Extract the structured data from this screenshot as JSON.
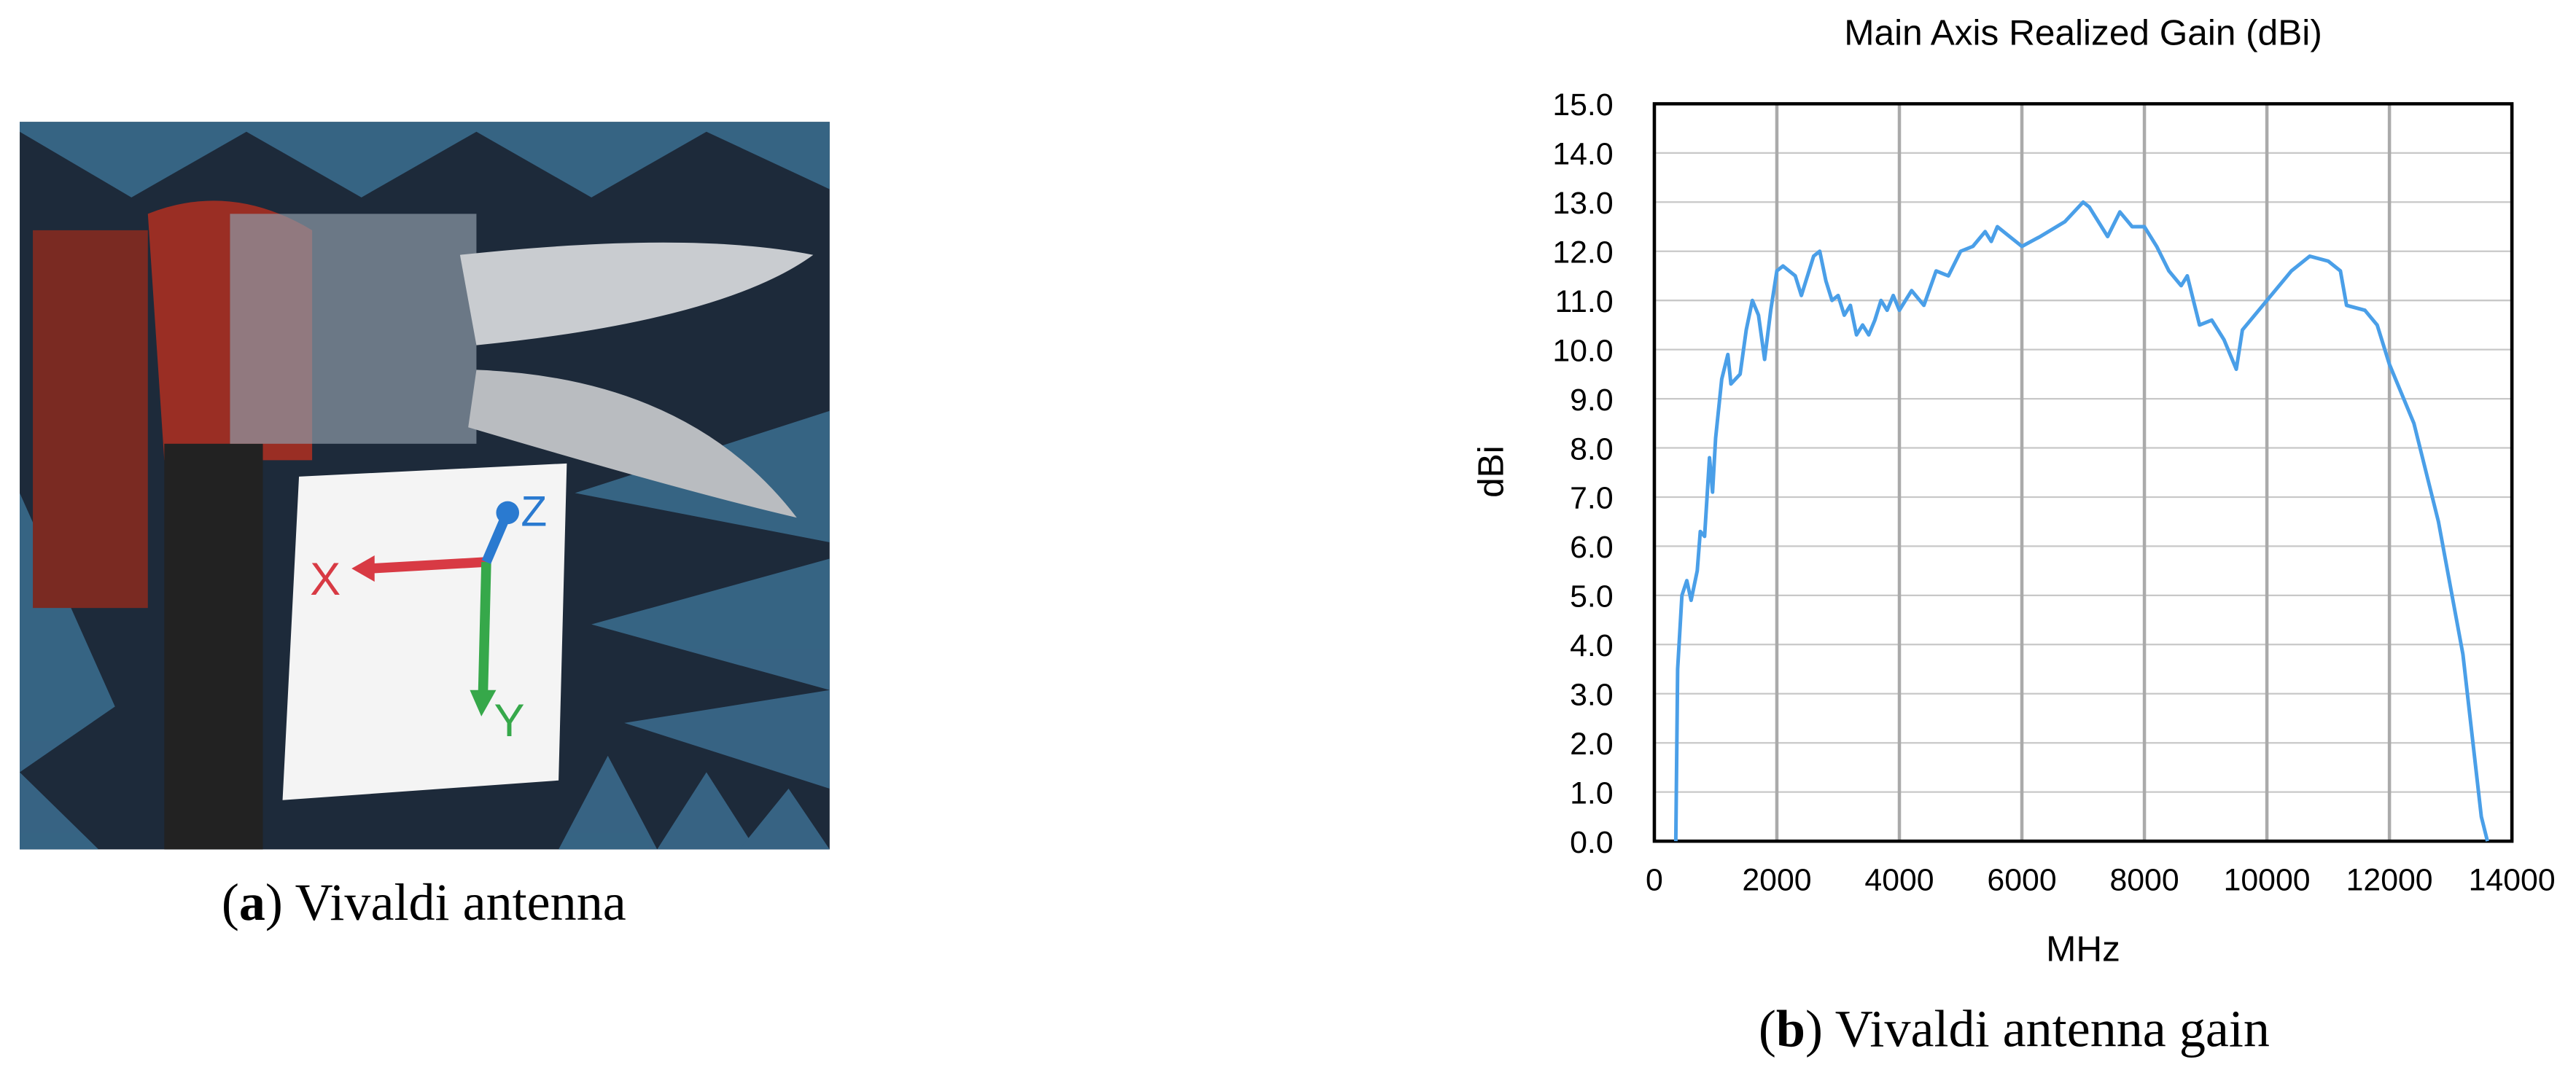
{
  "photo": {
    "labels": [
      "X",
      "Y",
      "Z"
    ],
    "caption": [
      "(",
      "a",
      ") Vivaldi antenna"
    ]
  },
  "chart_caption": [
    "(",
    "b",
    ") Vivaldi antenna gain"
  ],
  "chart_data": {
    "type": "line",
    "title": "Main Axis Realized Gain (dBi)",
    "x_label": "MHz",
    "y_label": "dBi",
    "color": "#4a9fe8",
    "grid": true,
    "xlim": [
      0,
      14000
    ],
    "xticks": [
      0,
      2000,
      4000,
      6000,
      8000,
      10000,
      12000,
      14000
    ],
    "ylim": [
      0,
      15
    ],
    "yticks": [
      {
        "value": 0,
        "label": "0.0"
      },
      {
        "value": 1,
        "label": "1.0"
      },
      {
        "value": 2,
        "label": "2.0"
      },
      {
        "value": 3,
        "label": "3.0"
      },
      {
        "value": 4,
        "label": "4.0"
      },
      {
        "value": 5,
        "label": "5.0"
      },
      {
        "value": 6,
        "label": "6.0"
      },
      {
        "value": 7,
        "label": "7.0"
      },
      {
        "value": 8,
        "label": "8.0"
      },
      {
        "value": 9,
        "label": "9.0"
      },
      {
        "value": 10,
        "label": "10.0"
      },
      {
        "value": 11,
        "label": "11.0"
      },
      {
        "value": 12,
        "label": "12.0"
      },
      {
        "value": 13,
        "label": "13.0"
      },
      {
        "value": 14,
        "label": "14.0"
      },
      {
        "value": 15,
        "label": "15.0"
      }
    ],
    "x": [
      350,
      380,
      450,
      530,
      600,
      700,
      750,
      820,
      900,
      950,
      1000,
      1100,
      1200,
      1250,
      1400,
      1500,
      1600,
      1700,
      1800,
      1900,
      2000,
      2100,
      2200,
      2300,
      2400,
      2500,
      2600,
      2700,
      2800,
      2900,
      3000,
      3100,
      3200,
      3300,
      3400,
      3500,
      3600,
      3700,
      3800,
      3900,
      4000,
      4200,
      4400,
      4600,
      4800,
      5000,
      5200,
      5400,
      5500,
      5600,
      5800,
      6000,
      6300,
      6700,
      7000,
      7100,
      7400,
      7600,
      7800,
      8000,
      8200,
      8400,
      8600,
      8700,
      8900,
      9100,
      9300,
      9500,
      9600,
      10000,
      10400,
      10700,
      11000,
      11200,
      11300,
      11600,
      11800,
      12000,
      12400,
      12800,
      13200,
      13500,
      13600
    ],
    "values": [
      0,
      3.5,
      5.0,
      5.3,
      4.9,
      5.5,
      6.3,
      6.2,
      7.8,
      7.1,
      8.2,
      9.4,
      9.9,
      9.3,
      9.5,
      10.4,
      11.0,
      10.7,
      9.8,
      10.8,
      11.6,
      11.7,
      11.6,
      11.5,
      11.1,
      11.5,
      11.9,
      12.0,
      11.4,
      11.0,
      11.1,
      10.7,
      10.9,
      10.3,
      10.5,
      10.3,
      10.6,
      11.0,
      10.8,
      11.1,
      10.8,
      11.2,
      10.9,
      11.6,
      11.5,
      12.0,
      12.1,
      12.4,
      12.2,
      12.5,
      12.3,
      12.1,
      12.3,
      12.6,
      13.0,
      12.9,
      12.3,
      12.8,
      12.5,
      12.5,
      12.1,
      11.6,
      11.3,
      11.5,
      10.5,
      10.6,
      10.2,
      9.6,
      10.4,
      11.0,
      11.6,
      11.9,
      11.8,
      11.6,
      10.9,
      10.8,
      10.5,
      9.7,
      8.5,
      6.5,
      3.8,
      0.5,
      0
    ]
  }
}
